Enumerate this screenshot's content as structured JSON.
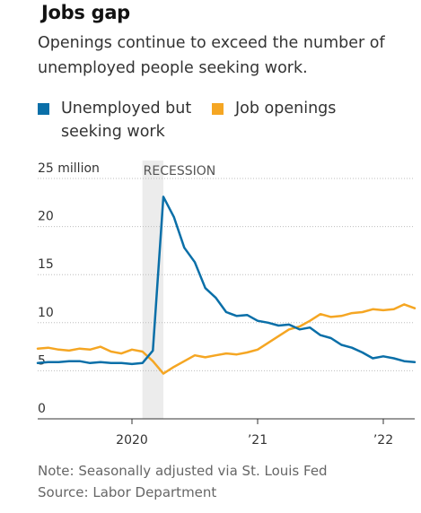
{
  "title": "Jobs gap",
  "subtitle": "Openings continue to exceed the number of unemployed people seeking work.",
  "legend": [
    {
      "label": "Unemployed but seeking work",
      "color": "#0a6fa8"
    },
    {
      "label": "Job openings",
      "color": "#f5a623"
    }
  ],
  "note": "Note: Seasonally adjusted via St. Louis Fed",
  "source": "Source: Labor Department",
  "chart_data": {
    "type": "line",
    "y_unit_label": "25 million",
    "y_ticks": [
      0,
      5,
      10,
      15,
      20,
      25
    ],
    "y_tick_labels": [
      "0",
      "5",
      "10",
      "15",
      "20",
      "25 million"
    ],
    "ylim": [
      0,
      25
    ],
    "x_ticks": [
      {
        "x": "2020-01",
        "label": "2020"
      },
      {
        "x": "2021-01",
        "label": "’21"
      },
      {
        "x": "2022-01",
        "label": "’22"
      }
    ],
    "xlim": [
      "2019-04",
      "2022-04"
    ],
    "grid": true,
    "annotations": [
      {
        "label": "RECESSION",
        "x_start": "2020-02",
        "x_end": "2020-04"
      }
    ],
    "x": [
      "2019-04",
      "2019-05",
      "2019-06",
      "2019-07",
      "2019-08",
      "2019-09",
      "2019-10",
      "2019-11",
      "2019-12",
      "2020-01",
      "2020-02",
      "2020-03",
      "2020-04",
      "2020-05",
      "2020-06",
      "2020-07",
      "2020-08",
      "2020-09",
      "2020-10",
      "2020-11",
      "2020-12",
      "2021-01",
      "2021-02",
      "2021-03",
      "2021-04",
      "2021-05",
      "2021-06",
      "2021-07",
      "2021-08",
      "2021-09",
      "2021-10",
      "2021-11",
      "2021-12",
      "2022-01",
      "2022-02",
      "2022-03",
      "2022-04"
    ],
    "series": [
      {
        "name": "Unemployed but seeking work",
        "color": "#0a6fa8",
        "values": [
          5.8,
          5.9,
          5.9,
          6.0,
          6.0,
          5.8,
          5.9,
          5.8,
          5.8,
          5.7,
          5.8,
          7.1,
          23.1,
          21.0,
          17.8,
          16.3,
          13.6,
          12.6,
          11.1,
          10.7,
          10.8,
          10.2,
          10.0,
          9.7,
          9.8,
          9.3,
          9.5,
          8.7,
          8.4,
          7.7,
          7.4,
          6.9,
          6.3,
          6.5,
          6.3,
          6.0,
          5.9
        ]
      },
      {
        "name": "Job openings",
        "color": "#f5a623",
        "values": [
          7.3,
          7.4,
          7.2,
          7.1,
          7.3,
          7.2,
          7.5,
          7.0,
          6.8,
          7.2,
          7.0,
          6.0,
          4.7,
          5.4,
          6.0,
          6.6,
          6.4,
          6.6,
          6.8,
          6.7,
          6.9,
          7.2,
          7.9,
          8.6,
          9.3,
          9.6,
          10.2,
          10.9,
          10.6,
          10.7,
          11.0,
          11.1,
          11.4,
          11.3,
          11.4,
          11.9,
          11.5
        ]
      }
    ]
  }
}
